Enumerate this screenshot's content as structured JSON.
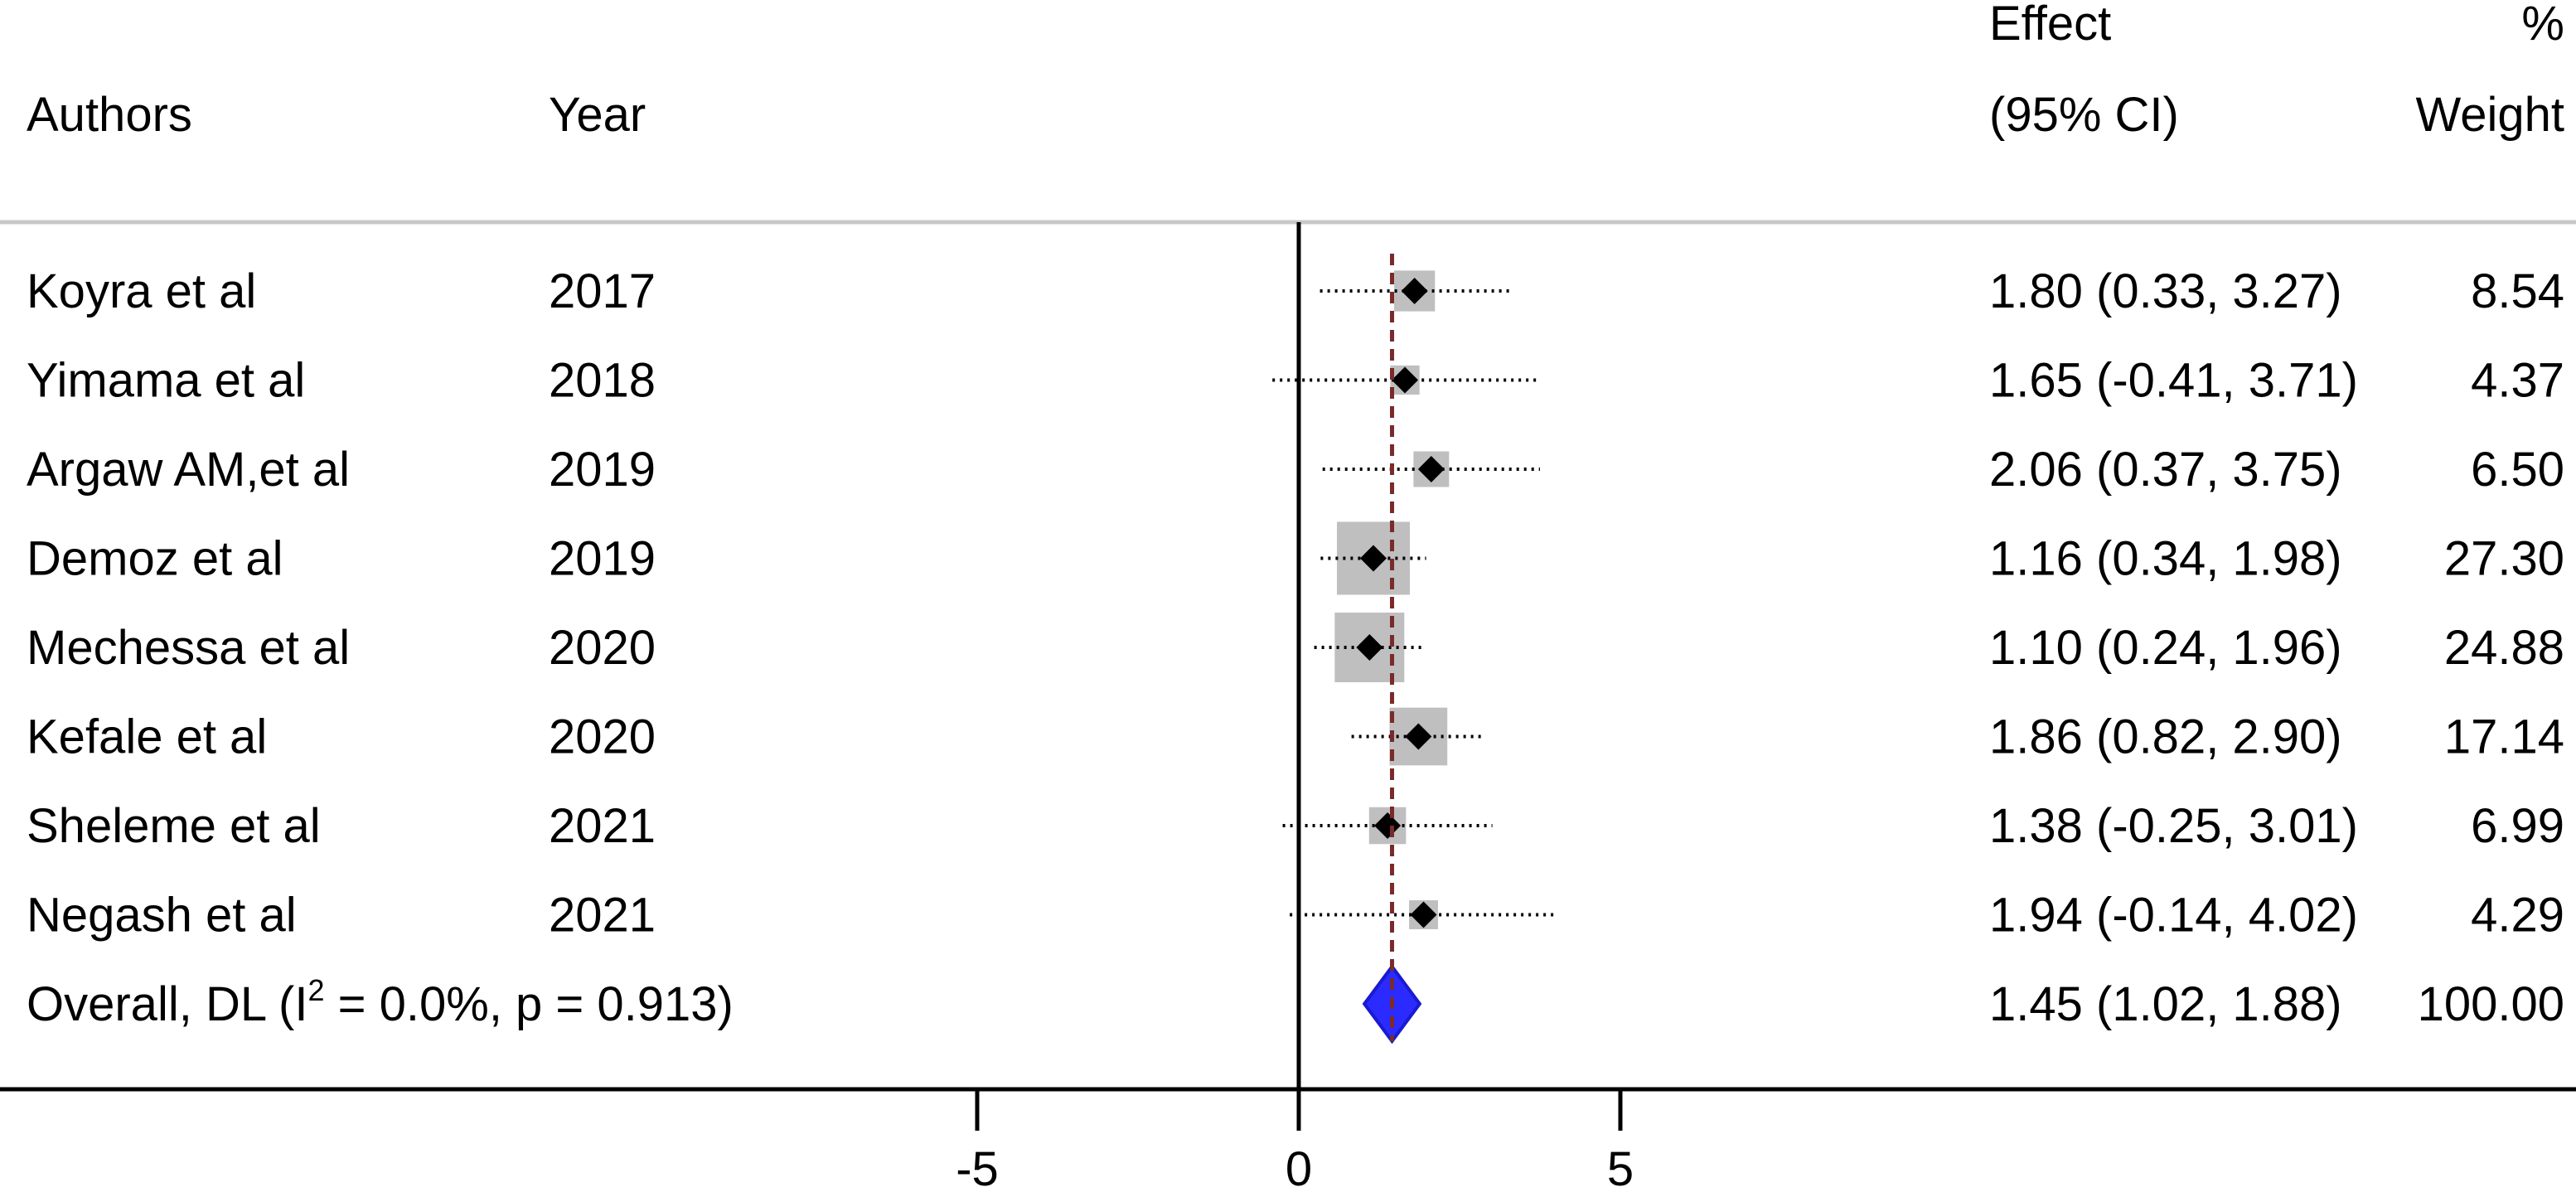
{
  "header": {
    "authors": "Authors",
    "year": "Year",
    "effect_line1": "Effect",
    "effect_line2": "(95% CI)",
    "weight_line1": "%",
    "weight_line2": "Weight"
  },
  "chart_data": {
    "type": "forest",
    "x_axis": {
      "ticks": [
        -5,
        0,
        5
      ],
      "tick_labels": [
        "-5",
        "0",
        "5"
      ],
      "range": [
        -10.1,
        9.9
      ]
    },
    "reference_line": 0,
    "colors": {
      "ci_line": "#000000",
      "weight_box": "#bfbfbf",
      "point": "#000000",
      "overall_line": "#7a2a2a",
      "overall_diamond": "#2b2bff",
      "separator": "#c8c8c8"
    },
    "studies": [
      {
        "author": "Koyra et al",
        "year": "2017",
        "effect": 1.8,
        "lower": 0.33,
        "upper": 3.27,
        "weight": 8.54,
        "effect_text": "1.80 (0.33, 3.27)",
        "weight_text": "8.54"
      },
      {
        "author": "Yimama et al",
        "year": "2018",
        "effect": 1.65,
        "lower": -0.41,
        "upper": 3.71,
        "weight": 4.37,
        "effect_text": "1.65 (-0.41, 3.71)",
        "weight_text": "4.37"
      },
      {
        "author": "Argaw AM,et al",
        "year": "2019",
        "effect": 2.06,
        "lower": 0.37,
        "upper": 3.75,
        "weight": 6.5,
        "effect_text": "2.06 (0.37, 3.75)",
        "weight_text": "6.50"
      },
      {
        "author": "Demoz et al",
        "year": "2019",
        "effect": 1.16,
        "lower": 0.34,
        "upper": 1.98,
        "weight": 27.3,
        "effect_text": "1.16 (0.34, 1.98)",
        "weight_text": "27.30"
      },
      {
        "author": "Mechessa et al",
        "year": "2020",
        "effect": 1.1,
        "lower": 0.24,
        "upper": 1.96,
        "weight": 24.88,
        "effect_text": "1.10 (0.24, 1.96)",
        "weight_text": "24.88"
      },
      {
        "author": "Kefale et al",
        "year": "2020",
        "effect": 1.86,
        "lower": 0.82,
        "upper": 2.9,
        "weight": 17.14,
        "effect_text": "1.86 (0.82, 2.90)",
        "weight_text": "17.14"
      },
      {
        "author": "Sheleme et al",
        "year": "2021",
        "effect": 1.38,
        "lower": -0.25,
        "upper": 3.01,
        "weight": 6.99,
        "effect_text": "1.38 (-0.25, 3.01)",
        "weight_text": "6.99"
      },
      {
        "author": "Negash et al",
        "year": "2021",
        "effect": 1.94,
        "lower": -0.14,
        "upper": 4.02,
        "weight": 4.29,
        "effect_text": "1.94 (-0.14, 4.02)",
        "weight_text": "4.29"
      }
    ],
    "overall": {
      "label_prefix": "Overall, DL (I",
      "label_sup": "2",
      "label_suffix": " = 0.0%, p = 0.913)",
      "effect": 1.45,
      "lower": 1.02,
      "upper": 1.88,
      "weight": 100.0,
      "effect_text": "1.45 (1.02, 1.88)",
      "weight_text": "100.00"
    }
  }
}
